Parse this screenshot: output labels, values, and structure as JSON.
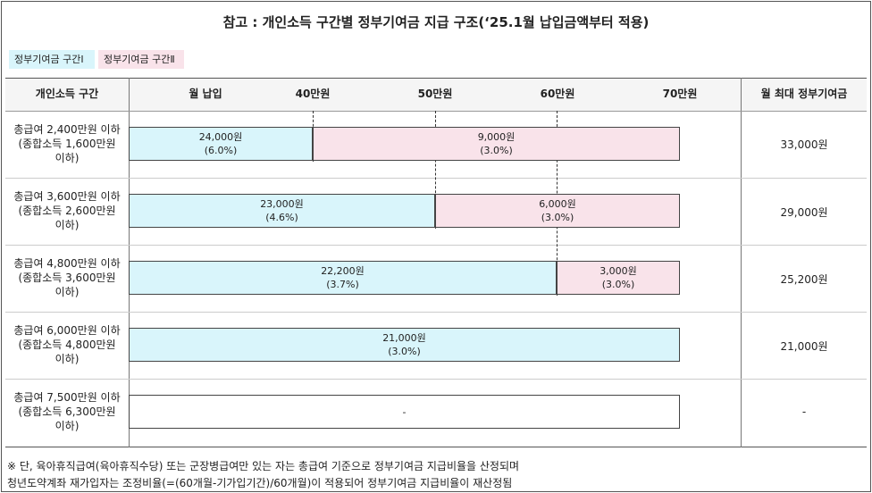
{
  "title": "참고 : 개인소득 구간별 정부기여금 지급 구조(‘25.1월 납입금액부터 적용)",
  "legend": {
    "tier1": "정부기여금 구간Ⅰ",
    "tier2": "정부기여금 구간Ⅱ",
    "tier1_color": "#d9f5fb",
    "tier2_color": "#f9e3ea"
  },
  "header": {
    "income": "개인소득 구간",
    "payment": "월 납입",
    "tick40": "40만원",
    "tick50": "50만원",
    "tick60": "60만원",
    "tick70": "70만원",
    "max": "월 최대 정부기여금"
  },
  "rows": [
    {
      "income_line1": "총급여 2,400만원 이하",
      "income_line2": "(종합소득 1,600만원",
      "income_line3": "이하)",
      "seg1_amount": "24,000원",
      "seg1_rate": "(6.0%)",
      "seg2_amount": "9,000원",
      "seg2_rate": "(3.0%)",
      "max": "33,000원"
    },
    {
      "income_line1": "총급여 3,600만원 이하",
      "income_line2": "(종합소득 2,600만원",
      "income_line3": "이하)",
      "seg1_amount": "23,000원",
      "seg1_rate": "(4.6%)",
      "seg2_amount": "6,000원",
      "seg2_rate": "(3.0%)",
      "max": "29,000원"
    },
    {
      "income_line1": "총급여 4,800만원 이하",
      "income_line2": "(종합소득 3,600만원",
      "income_line3": "이하)",
      "seg1_amount": "22,200원",
      "seg1_rate": "(3.7%)",
      "seg2_amount": "3,000원",
      "seg2_rate": "(3.0%)",
      "max": "25,200원"
    },
    {
      "income_line1": "총급여 6,000만원 이하",
      "income_line2": "(종합소득 4,800만원",
      "income_line3": "이하)",
      "seg1_amount": "21,000원",
      "seg1_rate": "(3.0%)",
      "max": "21,000원"
    },
    {
      "income_line1": "총급여 7,500만원 이하",
      "income_line2": "(종합소득 6,300만원",
      "income_line3": "이하)",
      "seg_empty": "-",
      "max": "-"
    }
  ],
  "notes": {
    "line1": "※ 단, 육아휴직급여(육아휴직수당) 또는 군장병급여만 있는 자는 총급여 기준으로 정부기여금 지급비율을 산정되며",
    "line2": "청년도약계좌 재가입자는 조정비율(=(60개월-기가입기간)/60개월)이 적용되어 정부기여금 지급비율이 재산정됨"
  }
}
